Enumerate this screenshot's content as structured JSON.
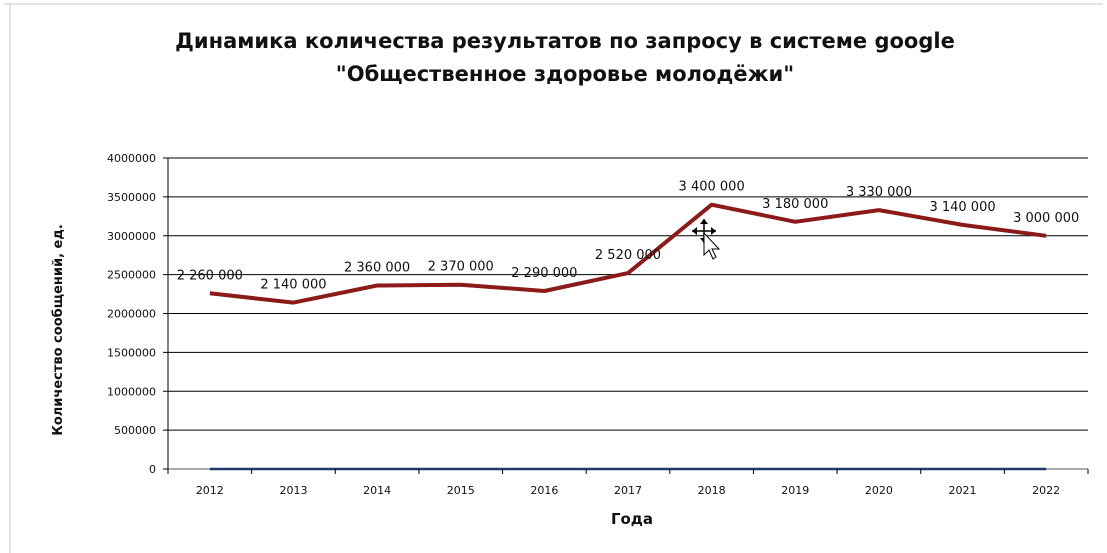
{
  "chart_data": {
    "type": "line",
    "title_line1": "Динамика количества результатов по запросу в системе google",
    "title_line2": "\"Общественное здоровье молодёжи\"",
    "xlabel": "Года",
    "ylabel": "Количество сообщений, ед.",
    "categories": [
      "2012",
      "2013",
      "2014",
      "2015",
      "2016",
      "2017",
      "2018",
      "2019",
      "2020",
      "2021",
      "2022"
    ],
    "y_ticks": [
      "0",
      "500000",
      "1000000",
      "1500000",
      "2000000",
      "2500000",
      "3000000",
      "3500000",
      "4000000"
    ],
    "ylim": [
      0,
      4000000
    ],
    "grid": true,
    "series": [
      {
        "values": [
          2260000,
          2140000,
          2360000,
          2370000,
          2290000,
          2520000,
          3400000,
          3180000,
          3330000,
          3140000,
          3000000
        ],
        "labels": [
          "2 260 000",
          "2 140 000",
          "2 360 000",
          "2 370 000",
          "2 290 000",
          "2 520 000",
          "3 400 000",
          "3 180 000",
          "3 330 000",
          "3 140 000",
          "3 000 000"
        ],
        "color": "#8b1a1a"
      },
      {
        "values": [
          0,
          0,
          0,
          0,
          0,
          0,
          0,
          0,
          0,
          0,
          0
        ],
        "color": "#1f3a6b"
      }
    ]
  }
}
